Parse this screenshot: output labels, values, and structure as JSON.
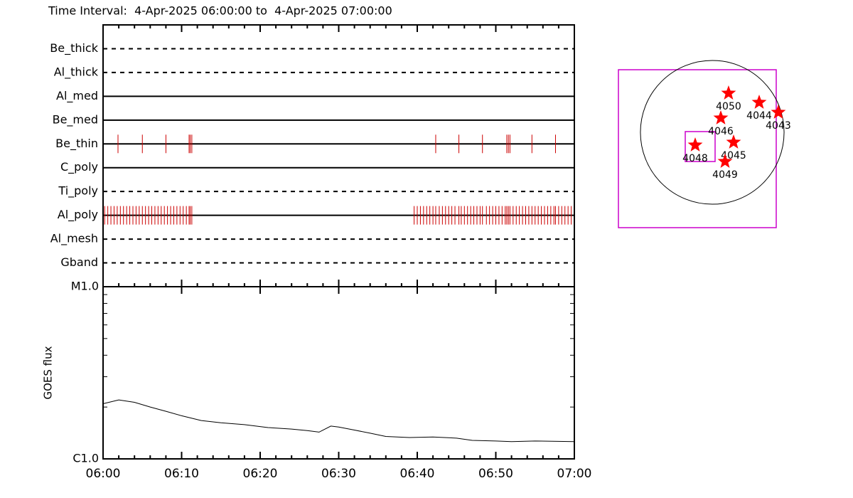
{
  "chart_data": [
    {
      "type": "timeline",
      "title": "Time Interval:  4-Apr-2025 06:00:00 to  4-Apr-2025 07:00:00",
      "categories": [
        "Be_thick",
        "Al_thick",
        "Al_med",
        "Be_med",
        "Be_thin",
        "C_poly",
        "Ti_poly",
        "Al_poly",
        "Al_mesh",
        "Gband"
      ],
      "line_styles": [
        "dashed",
        "dashed",
        "solid",
        "solid",
        "solid",
        "solid",
        "dashed",
        "solid",
        "dashed",
        "dashed"
      ],
      "color": "#cc0000",
      "xlim": [
        0,
        60
      ],
      "exposures": [
        [],
        [],
        [],
        [],
        [
          1.9,
          5.0,
          8.0,
          10.95,
          11.1,
          11.3,
          42.35,
          45.3,
          48.3,
          51.4,
          51.6,
          51.8,
          54.6,
          57.6
        ],
        [],
        [],
        [
          0.2,
          0.6,
          1.0,
          1.4,
          1.8,
          2.2,
          2.6,
          3.0,
          3.4,
          3.8,
          4.2,
          4.6,
          5.0,
          5.4,
          5.8,
          6.2,
          6.6,
          7.0,
          7.4,
          7.8,
          8.2,
          8.6,
          9.0,
          9.4,
          9.8,
          10.2,
          10.6,
          10.95,
          11.1,
          11.3,
          39.6,
          40.0,
          40.4,
          40.8,
          41.2,
          41.6,
          42.0,
          42.35,
          42.8,
          43.2,
          43.6,
          44.0,
          44.4,
          44.8,
          45.3,
          45.6,
          46.0,
          46.4,
          46.8,
          47.2,
          47.6,
          48.0,
          48.3,
          48.8,
          49.2,
          49.6,
          50.0,
          50.4,
          50.8,
          51.2,
          51.4,
          51.6,
          51.8,
          52.2,
          52.6,
          53.0,
          53.4,
          53.8,
          54.2,
          54.6,
          55.0,
          55.4,
          55.8,
          56.2,
          56.6,
          57.0,
          57.4,
          57.6,
          58.0,
          58.4,
          58.8,
          59.2,
          59.6
        ],
        [],
        []
      ]
    },
    {
      "type": "line",
      "y_label": "GOES flux",
      "log_scale": true,
      "color": "#000000",
      "x": [
        0,
        2,
        4,
        6,
        8,
        10,
        12.5,
        15,
        18,
        21,
        24,
        26,
        27.5,
        28,
        29,
        30,
        32,
        34,
        36,
        39,
        42,
        45,
        47,
        50,
        52,
        55,
        60
      ],
      "values": [
        2.09e-06,
        2.2e-06,
        2.13e-06,
        2e-06,
        1.89e-06,
        1.78e-06,
        1.67e-06,
        1.62e-06,
        1.58e-06,
        1.52e-06,
        1.49e-06,
        1.46e-06,
        1.43e-06,
        1.47e-06,
        1.55e-06,
        1.53e-06,
        1.47e-06,
        1.41e-06,
        1.35e-06,
        1.33e-06,
        1.34e-06,
        1.32e-06,
        1.28e-06,
        1.27e-06,
        1.26e-06,
        1.27e-06,
        1.26e-06
      ],
      "xlim": [
        0,
        60
      ],
      "xticks": [
        {
          "value": 0,
          "label": "06:00"
        },
        {
          "value": 10,
          "label": "06:10"
        },
        {
          "value": 20,
          "label": "06:20"
        },
        {
          "value": 30,
          "label": "06:30"
        },
        {
          "value": 40,
          "label": "06:40"
        },
        {
          "value": 50,
          "label": "06:50"
        },
        {
          "value": 60,
          "label": "07:00"
        }
      ],
      "ylim": [
        1e-06,
        1e-05
      ],
      "yticks": [
        {
          "value": 1e-06,
          "label": "C1.0"
        },
        {
          "value": 1e-05,
          "label": "M1.0"
        }
      ]
    },
    {
      "type": "map",
      "xlim": [
        -1254,
        855
      ],
      "ylim": [
        -1273,
        836
      ],
      "disk_radius": 960,
      "box_color": "#cc00cc",
      "star_color": "#ff0000",
      "fov": {
        "x": [
          -361,
          38
        ],
        "y": [
          -390,
          10
        ]
      },
      "regions": [
        "4050",
        "4044",
        "4043",
        "4046",
        "4045",
        "4048",
        "4049"
      ],
      "x": [
        218,
        627,
        883,
        114,
        285,
        -228,
        171
      ],
      "values": [
        522,
        399,
        266,
        190,
        -133,
        -171,
        -390
      ]
    }
  ]
}
